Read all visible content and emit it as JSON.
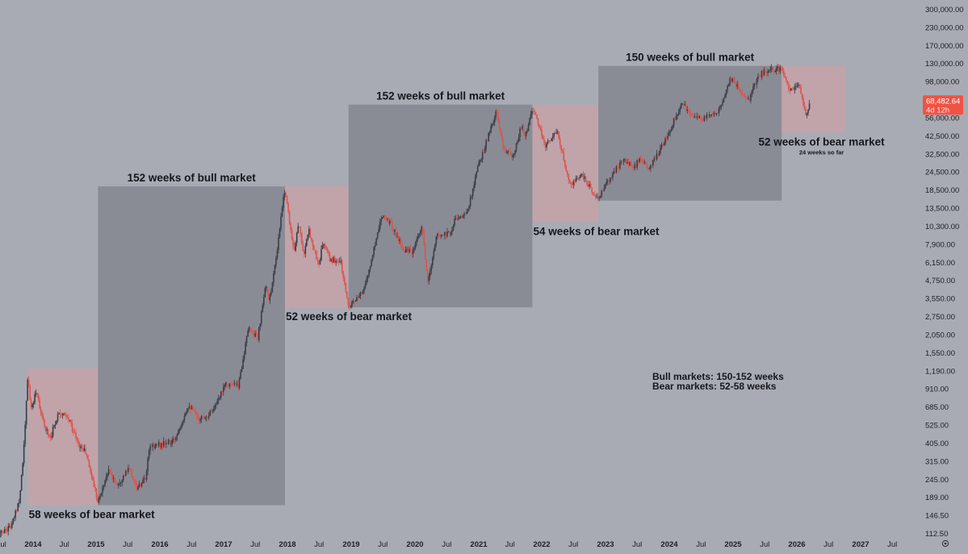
{
  "chart_data": {
    "type": "candlestick",
    "title": "",
    "xlabel": "",
    "ylabel": "",
    "y_scale": "log",
    "ylim": [
      100,
      320000
    ],
    "xlim": [
      "2013-06-01",
      "2027-10-01"
    ],
    "grid": false,
    "x_ticks": [
      {
        "label": "Jul",
        "date": "2013-07-01"
      },
      {
        "label": "2014",
        "date": "2014-01-01"
      },
      {
        "label": "Jul",
        "date": "2014-07-01"
      },
      {
        "label": "2015",
        "date": "2015-01-01"
      },
      {
        "label": "Jul",
        "date": "2015-07-01"
      },
      {
        "label": "2016",
        "date": "2016-01-01"
      },
      {
        "label": "Jul",
        "date": "2016-07-01"
      },
      {
        "label": "2017",
        "date": "2017-01-01"
      },
      {
        "label": "Jul",
        "date": "2017-07-01"
      },
      {
        "label": "2018",
        "date": "2018-01-01"
      },
      {
        "label": "Jul",
        "date": "2018-07-01"
      },
      {
        "label": "2019",
        "date": "2019-01-01"
      },
      {
        "label": "Jul",
        "date": "2019-07-01"
      },
      {
        "label": "2020",
        "date": "2020-01-01"
      },
      {
        "label": "Jul",
        "date": "2020-07-01"
      },
      {
        "label": "2021",
        "date": "2021-01-01"
      },
      {
        "label": "Jul",
        "date": "2021-07-01"
      },
      {
        "label": "2022",
        "date": "2022-01-01"
      },
      {
        "label": "Jul",
        "date": "2022-07-01"
      },
      {
        "label": "2023",
        "date": "2023-01-01"
      },
      {
        "label": "Jul",
        "date": "2023-07-01"
      },
      {
        "label": "2024",
        "date": "2024-01-01"
      },
      {
        "label": "Jul",
        "date": "2024-07-01"
      },
      {
        "label": "2025",
        "date": "2025-01-01"
      },
      {
        "label": "Jul",
        "date": "2025-07-01"
      },
      {
        "label": "2026",
        "date": "2026-01-01"
      },
      {
        "label": "Jul",
        "date": "2026-07-01"
      },
      {
        "label": "2027",
        "date": "2027-01-01"
      },
      {
        "label": "Jul",
        "date": "2027-07-01"
      }
    ],
    "y_ticks": [
      {
        "label": "300,000.00",
        "value": 300000
      },
      {
        "label": "230,000.00",
        "value": 230000
      },
      {
        "label": "170,000.00",
        "value": 170000
      },
      {
        "label": "130,000.00",
        "value": 130000
      },
      {
        "label": "98,000.00",
        "value": 98000
      },
      {
        "label": "74,000.00",
        "value": 74000
      },
      {
        "label": "56,000.00",
        "value": 56000
      },
      {
        "label": "42,500.00",
        "value": 42500
      },
      {
        "label": "32,500.00",
        "value": 32500
      },
      {
        "label": "24,500.00",
        "value": 24500
      },
      {
        "label": "18,500.00",
        "value": 18500
      },
      {
        "label": "13,500.00",
        "value": 13500
      },
      {
        "label": "10,300.00",
        "value": 10300
      },
      {
        "label": "7,900.00",
        "value": 7900
      },
      {
        "label": "6,150.00",
        "value": 6150
      },
      {
        "label": "4,750.00",
        "value": 4750
      },
      {
        "label": "3,550.00",
        "value": 3550
      },
      {
        "label": "2,750.00",
        "value": 2750
      },
      {
        "label": "2,050.00",
        "value": 2050
      },
      {
        "label": "1,550.00",
        "value": 1550
      },
      {
        "label": "1,190.00",
        "value": 1190
      },
      {
        "label": "910.00",
        "value": 910
      },
      {
        "label": "685.00",
        "value": 685
      },
      {
        "label": "525.00",
        "value": 525
      },
      {
        "label": "405.00",
        "value": 405
      },
      {
        "label": "315.00",
        "value": 315
      },
      {
        "label": "245.00",
        "value": 245
      },
      {
        "label": "189.00",
        "value": 189
      },
      {
        "label": "146.50",
        "value": 146.5
      },
      {
        "label": "112.50",
        "value": 112.5
      }
    ],
    "price_tag": {
      "value": 68482.64,
      "label": "68,482.64",
      "countdown": "4d 12h",
      "color": "#f05345"
    },
    "regions": [
      {
        "kind": "bear",
        "start": "2013-12-02",
        "end": "2015-01-12",
        "high": 1240,
        "low": 170,
        "label": "58 weeks of bear market",
        "label_anchor": "bottom-left",
        "sublabel": ""
      },
      {
        "kind": "bull",
        "start": "2015-01-12",
        "end": "2017-12-18",
        "high": 19700,
        "low": 170,
        "label": "152 weeks of bull market",
        "label_anchor": "top-center",
        "sublabel": ""
      },
      {
        "kind": "bear",
        "start": "2017-12-18",
        "end": "2018-12-17",
        "high": 19700,
        "low": 3150,
        "label": "52 weeks of bear market",
        "label_anchor": "bottom-left",
        "sublabel": ""
      },
      {
        "kind": "bull",
        "start": "2018-12-17",
        "end": "2021-11-08",
        "high": 69000,
        "low": 3150,
        "label": "152 weeks of bull market",
        "label_anchor": "top-center",
        "sublabel": ""
      },
      {
        "kind": "bear",
        "start": "2021-11-08",
        "end": "2022-11-21",
        "high": 69000,
        "low": 11000,
        "label": "54 weeks of bear market",
        "label_anchor": "bottom-left",
        "sublabel": ""
      },
      {
        "kind": "bull",
        "start": "2022-11-21",
        "end": "2025-10-06",
        "high": 126000,
        "low": 15500,
        "label": "150 weeks of bull market",
        "label_anchor": "top-center",
        "sublabel": ""
      },
      {
        "kind": "bear",
        "start": "2025-10-06",
        "end": "2026-10-05",
        "high": 126000,
        "low": 45000,
        "label": "52 weeks of bear market",
        "label_anchor": "bottom-center",
        "sublabel": "24 weeks so far"
      }
    ],
    "annotation_lines": [
      "Bull markets: 150-152 weeks",
      "Bear markets: 52-58 weeks"
    ],
    "series": [
      {
        "type": "candlestick",
        "up_color": "#3a3d45",
        "down_color": "#e0524a",
        "close_points": [
          [
            "2013-06-01",
            108
          ],
          [
            "2013-09-01",
            128
          ],
          [
            "2013-10-15",
            190
          ],
          [
            "2013-11-10",
            400
          ],
          [
            "2013-12-02",
            1130
          ],
          [
            "2013-12-20",
            650
          ],
          [
            "2014-01-20",
            900
          ],
          [
            "2014-02-25",
            560
          ],
          [
            "2014-04-10",
            440
          ],
          [
            "2014-06-01",
            650
          ],
          [
            "2014-08-01",
            560
          ],
          [
            "2014-09-20",
            400
          ],
          [
            "2014-11-01",
            360
          ],
          [
            "2015-01-14",
            178
          ],
          [
            "2015-03-10",
            280
          ],
          [
            "2015-05-01",
            230
          ],
          [
            "2015-07-10",
            285
          ],
          [
            "2015-08-25",
            215
          ],
          [
            "2015-10-10",
            245
          ],
          [
            "2015-11-05",
            390
          ],
          [
            "2016-01-15",
            400
          ],
          [
            "2016-03-20",
            415
          ],
          [
            "2016-06-15",
            720
          ],
          [
            "2016-08-05",
            580
          ],
          [
            "2016-10-01",
            610
          ],
          [
            "2016-12-01",
            750
          ],
          [
            "2017-01-05",
            1000
          ],
          [
            "2017-03-25",
            950
          ],
          [
            "2017-05-25",
            2300
          ],
          [
            "2017-07-15",
            1950
          ],
          [
            "2017-09-01",
            4600
          ],
          [
            "2017-09-15",
            3300
          ],
          [
            "2017-11-01",
            6800
          ],
          [
            "2017-12-17",
            19000
          ],
          [
            "2018-02-06",
            7000
          ],
          [
            "2018-03-05",
            11000
          ],
          [
            "2018-04-05",
            6800
          ],
          [
            "2018-05-05",
            9700
          ],
          [
            "2018-06-28",
            5900
          ],
          [
            "2018-07-25",
            8200
          ],
          [
            "2018-09-01",
            6400
          ],
          [
            "2018-11-01",
            6300
          ],
          [
            "2018-12-15",
            3250
          ],
          [
            "2019-02-15",
            3600
          ],
          [
            "2019-04-05",
            5000
          ],
          [
            "2019-06-26",
            12500
          ],
          [
            "2019-08-10",
            11000
          ],
          [
            "2019-10-25",
            7500
          ],
          [
            "2019-12-18",
            7000
          ],
          [
            "2020-02-12",
            10300
          ],
          [
            "2020-03-13",
            4500
          ],
          [
            "2020-05-05",
            9000
          ],
          [
            "2020-07-25",
            9500
          ],
          [
            "2020-08-20",
            11800
          ],
          [
            "2020-10-20",
            12200
          ],
          [
            "2020-11-15",
            16000
          ],
          [
            "2020-12-25",
            26000
          ],
          [
            "2021-01-20",
            32000
          ],
          [
            "2021-04-15",
            62000
          ],
          [
            "2021-05-20",
            36000
          ],
          [
            "2021-07-20",
            30500
          ],
          [
            "2021-09-05",
            50000
          ],
          [
            "2021-09-28",
            42000
          ],
          [
            "2021-11-08",
            66000
          ],
          [
            "2022-01-20",
            37000
          ],
          [
            "2022-03-28",
            46000
          ],
          [
            "2022-06-18",
            19500
          ],
          [
            "2022-08-12",
            24000
          ],
          [
            "2022-11-20",
            16000
          ],
          [
            "2023-01-30",
            23000
          ],
          [
            "2023-04-15",
            30000
          ],
          [
            "2023-06-10",
            26000
          ],
          [
            "2023-07-15",
            30000
          ],
          [
            "2023-09-10",
            25800
          ],
          [
            "2023-12-15",
            42000
          ],
          [
            "2024-03-12",
            70000
          ],
          [
            "2024-05-05",
            60000
          ],
          [
            "2024-07-05",
            55000
          ],
          [
            "2024-10-10",
            62000
          ],
          [
            "2024-12-15",
            104000
          ],
          [
            "2025-02-28",
            82000
          ],
          [
            "2025-04-08",
            76000
          ],
          [
            "2025-05-25",
            108000
          ],
          [
            "2025-07-15",
            118000
          ],
          [
            "2025-10-06",
            121000
          ],
          [
            "2025-11-21",
            84000
          ],
          [
            "2026-01-15",
            95000
          ],
          [
            "2026-02-20",
            60000
          ],
          [
            "2026-03-15",
            68482
          ]
        ]
      }
    ]
  }
}
